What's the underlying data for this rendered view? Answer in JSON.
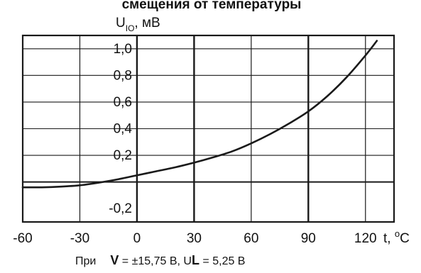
{
  "chart_data": {
    "type": "line",
    "title": "смещения от температуры",
    "ylabel": {
      "main": "U",
      "sub": "IO",
      "unit": ", мВ"
    },
    "xlabel": {
      "main": "t, ",
      "sup": "o",
      "unit": "C"
    },
    "xlim": [
      -60,
      135
    ],
    "ylim": [
      -0.3,
      1.1
    ],
    "x_ticks": [
      -60,
      -30,
      0,
      30,
      60,
      90,
      120
    ],
    "x_tick_labels": [
      "-60",
      "-30",
      "0",
      "30",
      "60",
      "90",
      "120"
    ],
    "y_ticks": [
      1.0,
      0.8,
      0.6,
      0.4,
      0.2,
      -0.2
    ],
    "y_tick_labels": [
      "1,0",
      "0,8",
      "0,6",
      "0,4",
      "0,2",
      "-0,2"
    ],
    "grid": true,
    "series": [
      {
        "color": "#1a1a1a",
        "x": [
          -60,
          -50,
          -40,
          -30,
          -20,
          -10,
          0,
          10,
          20,
          30,
          40,
          50,
          60,
          70,
          80,
          90,
          100,
          110,
          120,
          126
        ],
        "y": [
          -0.04,
          -0.04,
          -0.035,
          -0.025,
          -0.005,
          0.02,
          0.05,
          0.08,
          0.11,
          0.145,
          0.185,
          0.23,
          0.29,
          0.36,
          0.44,
          0.53,
          0.645,
          0.785,
          0.95,
          1.06
        ]
      }
    ],
    "footnote": {
      "prefix": "При",
      "v_bold": "V",
      "v_rest": " = ±15,75 В,  U",
      "l_bold": "L",
      "l_rest": " = 5,25 В"
    }
  },
  "colors": {
    "grid": "#1a1a1a",
    "curve": "#1a1a1a",
    "background": "#ffffff"
  }
}
